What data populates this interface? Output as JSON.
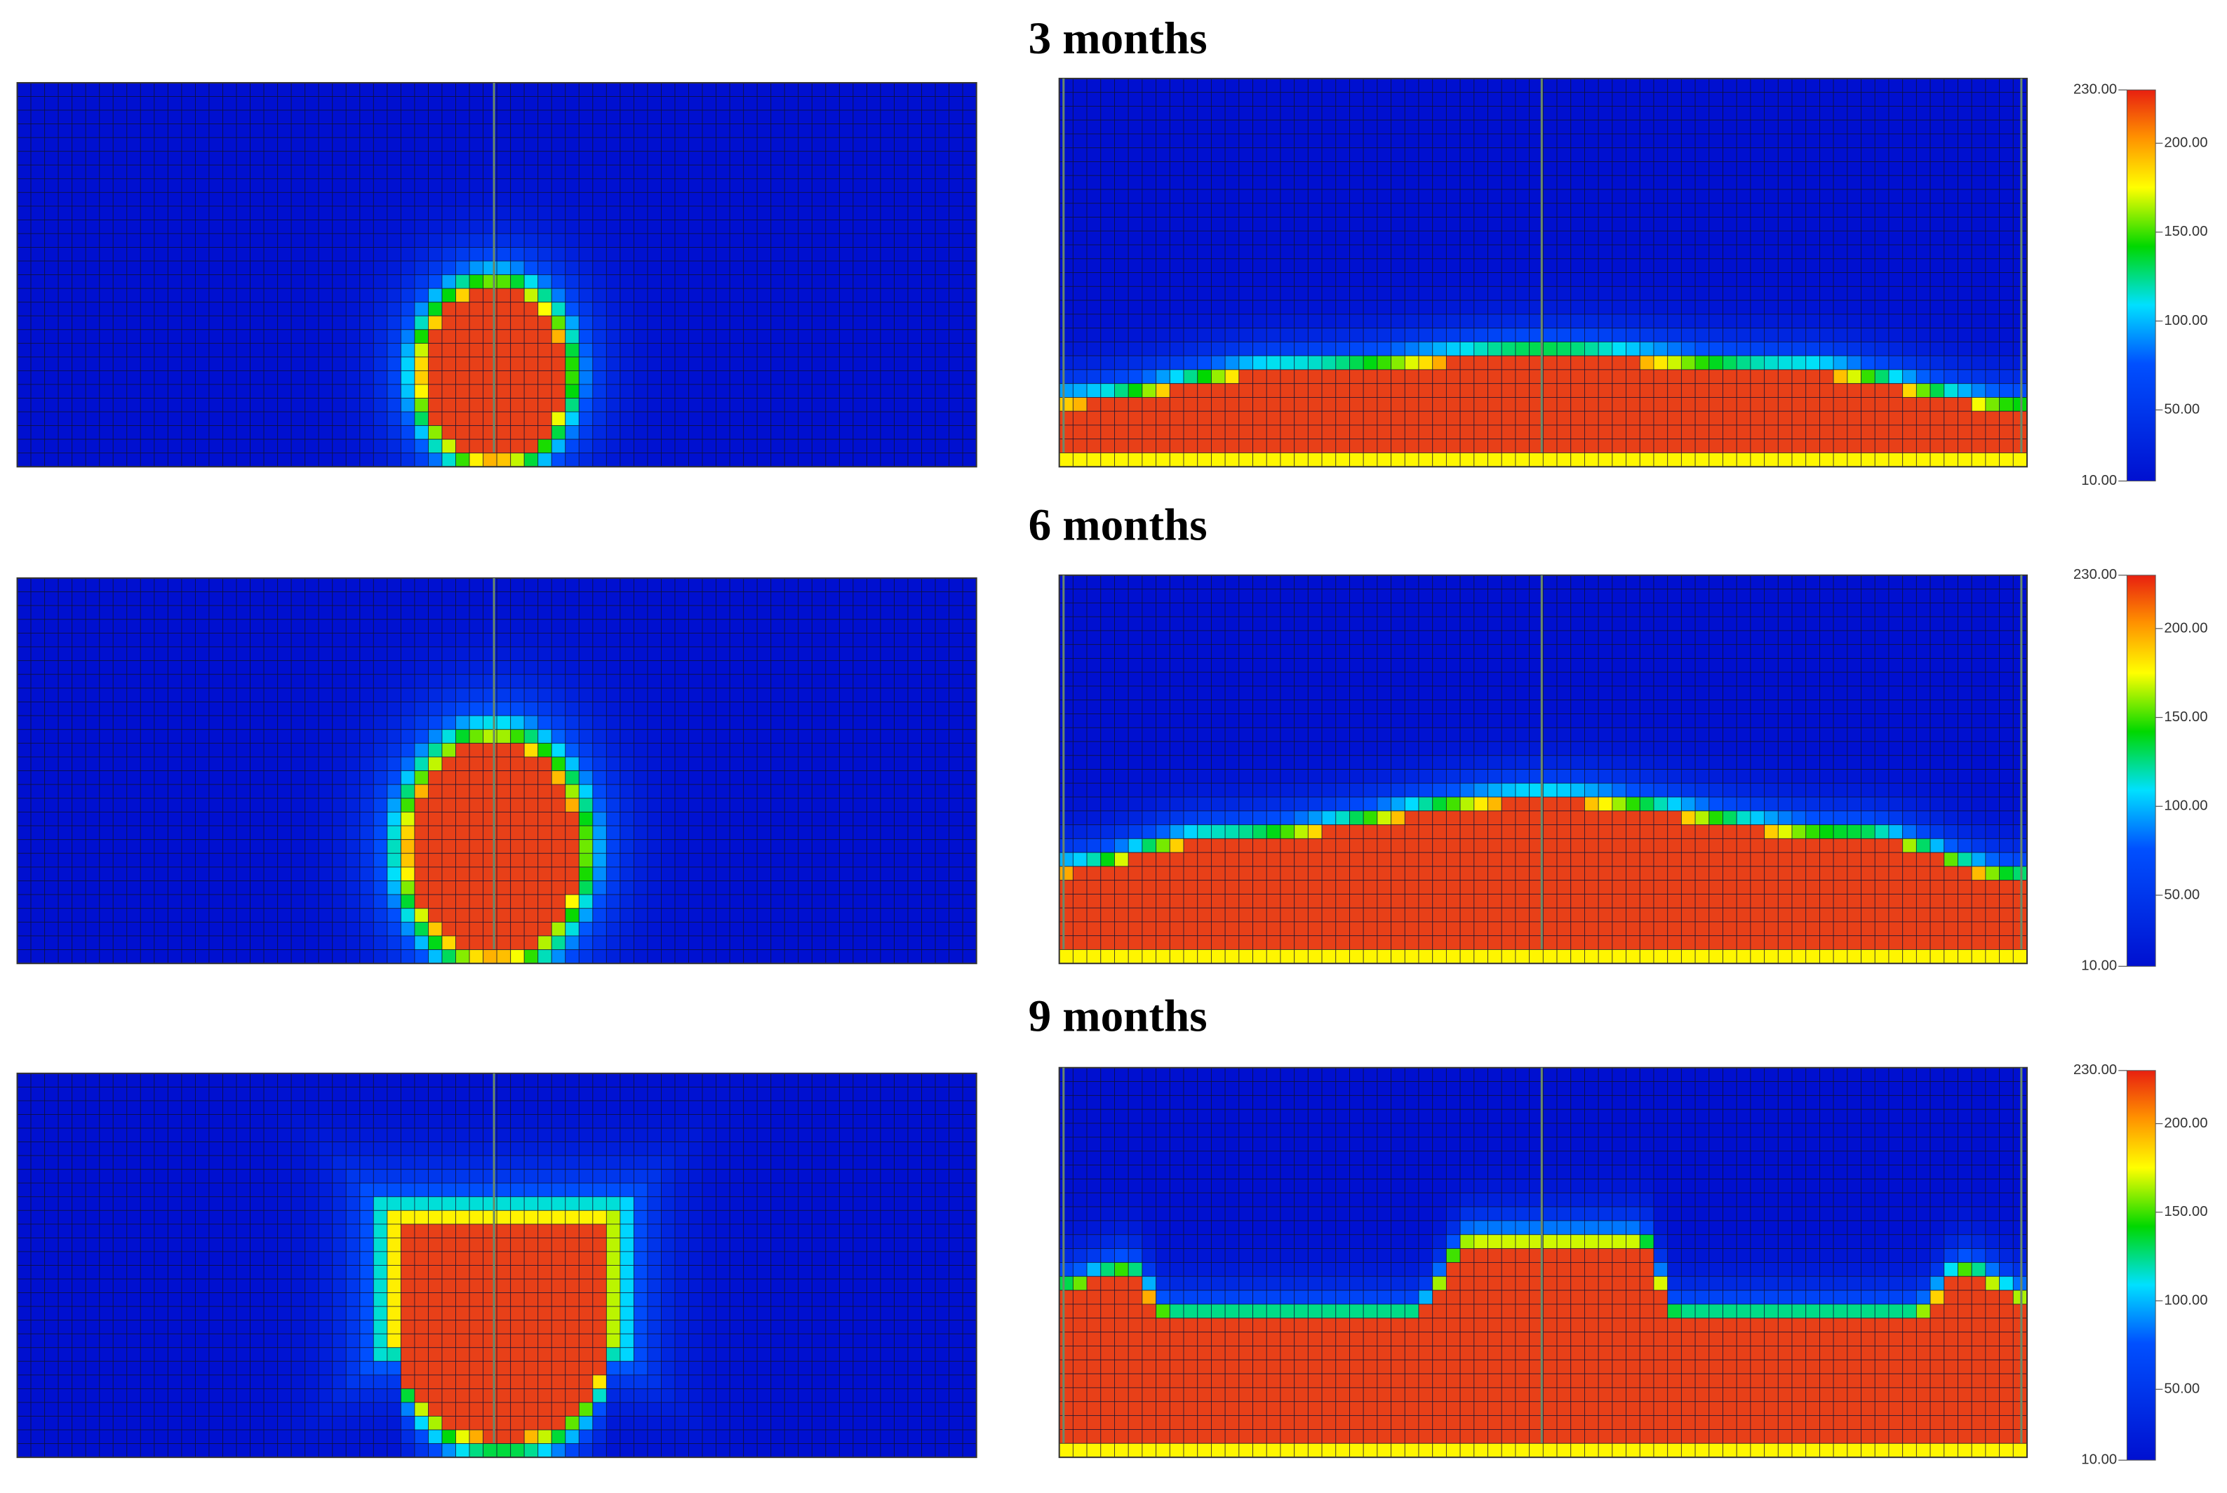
{
  "rows": [
    {
      "title": "3 months",
      "colorbar": {
        "clim": [
          10,
          230
        ],
        "ticks": [
          {
            "value": 230,
            "label": "230.00"
          },
          {
            "value": 200,
            "label": "200.00"
          },
          {
            "value": 150,
            "label": "150.00"
          },
          {
            "value": 100,
            "label": "100.00"
          },
          {
            "value": 50,
            "label": "50.00"
          },
          {
            "value": 10,
            "label": "10.00"
          }
        ]
      }
    },
    {
      "title": "6 months",
      "colorbar": {
        "clim": [
          10,
          230
        ],
        "ticks": [
          {
            "value": 230,
            "label": "230.00"
          },
          {
            "value": 200,
            "label": "200.00"
          },
          {
            "value": 150,
            "label": "150.00"
          },
          {
            "value": 100,
            "label": "100.00"
          },
          {
            "value": 50,
            "label": "50.00"
          },
          {
            "value": 10,
            "label": "10.00"
          }
        ]
      }
    },
    {
      "title": "9 months",
      "colorbar": {
        "clim": [
          10,
          230
        ],
        "ticks": [
          {
            "value": 230,
            "label": "230.00"
          },
          {
            "value": 200,
            "label": "200.00"
          },
          {
            "value": 150,
            "label": "150.00"
          },
          {
            "value": 100,
            "label": "100.00"
          },
          {
            "value": 50,
            "label": "50.00"
          },
          {
            "value": 10,
            "label": "10.00"
          }
        ]
      }
    }
  ]
}
